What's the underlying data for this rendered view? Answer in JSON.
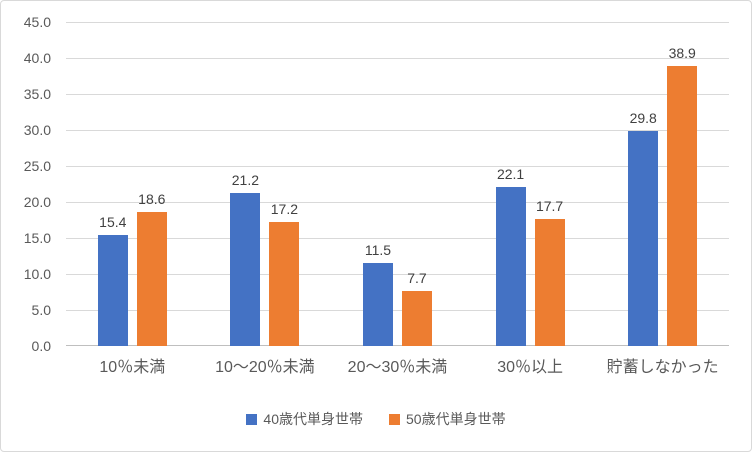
{
  "chart_data": {
    "type": "bar",
    "title": "",
    "categories": [
      "10％未満",
      "10～20％未満",
      "20～30％未満",
      "30％以上",
      "貯蓄しなかった"
    ],
    "series": [
      {
        "name": "40歳代単身世帯",
        "color": "#4472c4",
        "values": [
          15.4,
          21.2,
          11.5,
          22.1,
          29.8
        ]
      },
      {
        "name": "50歳代単身世帯",
        "color": "#ed7d31",
        "values": [
          18.6,
          17.2,
          7.7,
          17.7,
          38.9
        ]
      }
    ],
    "xlabel": "",
    "ylabel": "",
    "ylim": [
      0,
      45
    ],
    "ytick_step": 5,
    "ytick_decimals": 1,
    "grid": true,
    "legend_position": "bottom",
    "data_labels": true
  },
  "colors": {
    "gridline": "#d9d9d9",
    "axis_line": "#bfbfbf",
    "tick_text": "#595959",
    "data_label_text": "#404040",
    "chart_border": "#d9d9d9",
    "background": "#ffffff"
  }
}
